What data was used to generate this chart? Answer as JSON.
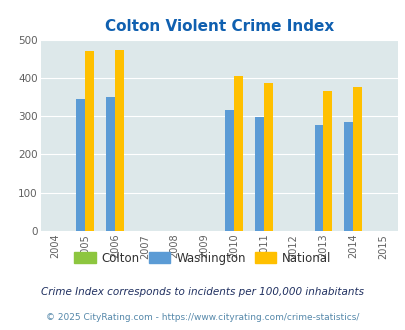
{
  "title": "Colton Violent Crime Index",
  "years": [
    2004,
    2005,
    2006,
    2007,
    2008,
    2009,
    2010,
    2011,
    2012,
    2013,
    2014,
    2015
  ],
  "washington_values": {
    "2005": 345,
    "2006": 349,
    "2010": 315,
    "2011": 298,
    "2013": 277,
    "2014": 285
  },
  "national_values": {
    "2005": 469,
    "2006": 473,
    "2010": 404,
    "2011": 387,
    "2013": 367,
    "2014": 376
  },
  "data_years": [
    2005,
    2006,
    2010,
    2011,
    2013,
    2014
  ],
  "bar_width": 0.3,
  "ylim": [
    0,
    500
  ],
  "yticks": [
    0,
    100,
    200,
    300,
    400,
    500
  ],
  "colton_color": "#8dc63f",
  "washington_color": "#5b9bd5",
  "national_color": "#ffc000",
  "bg_color": "#dde8ea",
  "grid_color": "#ffffff",
  "title_color": "#1060b0",
  "legend_label_color": "#303030",
  "legend_labels": [
    "Colton",
    "Washington",
    "National"
  ],
  "footnote1": "Crime Index corresponds to incidents per 100,000 inhabitants",
  "footnote2": "© 2025 CityRating.com - https://www.cityrating.com/crime-statistics/",
  "footnote1_color": "#203060",
  "footnote2_color": "#5588aa"
}
